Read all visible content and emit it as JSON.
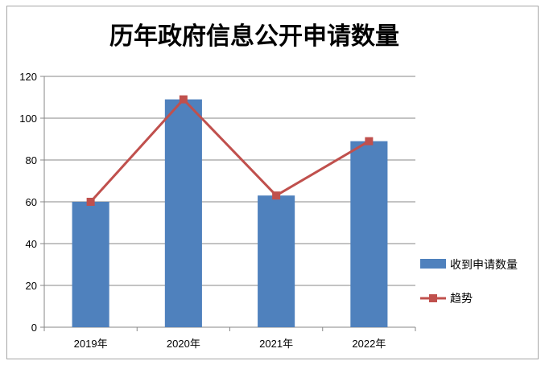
{
  "chart_data": {
    "type": "bar",
    "title": "历年政府信息公开申请数量",
    "categories": [
      "2019年",
      "2020年",
      "2021年",
      "2022年"
    ],
    "series": [
      {
        "name": "收到申请数量",
        "type": "bar",
        "values": [
          60,
          109,
          63,
          89
        ],
        "color": "#4F81BD"
      },
      {
        "name": "趋势",
        "type": "line",
        "values": [
          60,
          109,
          63,
          89
        ],
        "color": "#C0504D",
        "marker": "square"
      }
    ],
    "ylim": [
      0,
      120
    ],
    "yticks": [
      0,
      20,
      40,
      60,
      80,
      100,
      120
    ],
    "grid": true,
    "legend": "right"
  }
}
